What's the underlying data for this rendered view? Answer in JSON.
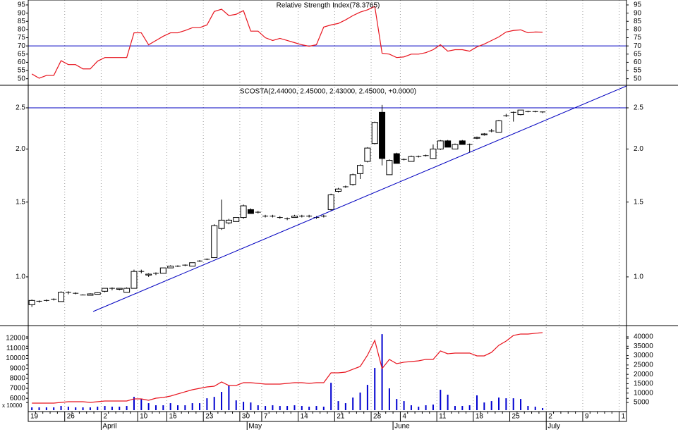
{
  "chart_data": [
    {
      "type": "line",
      "title": "Relative Strength Index(78.3765)",
      "color": "#e8141e",
      "ylim": [
        46,
        98
      ],
      "yticks": [
        50,
        55,
        60,
        65,
        70,
        75,
        80,
        85,
        90,
        95
      ],
      "grid": true,
      "reference_line": 70,
      "reference_color": "#0000c0",
      "values": [
        52.9,
        50.3,
        52,
        52,
        61,
        58.6,
        58.6,
        56,
        56,
        60.7,
        62.9,
        62.9,
        62.9,
        62.9,
        78,
        78,
        70.7,
        73.3,
        75.9,
        78,
        78,
        79.4,
        81.1,
        81.1,
        82.8,
        91,
        92.4,
        88.5,
        89.3,
        91.5,
        79,
        79,
        75,
        73.3,
        74.6,
        73.3,
        72,
        70.7,
        69.8,
        70.7,
        81.5,
        82.8,
        83.7,
        85.9,
        88.5,
        90.6,
        92,
        94.1,
        65.5,
        65,
        62.9,
        63.3,
        65,
        65,
        65.9,
        67.7,
        70.7,
        66.8,
        67.7,
        67.7,
        66.8,
        69.4,
        71.1,
        73.3,
        75.5,
        78.5,
        79.4,
        79.8,
        78,
        78.5,
        78.3765,
        null,
        null,
        null,
        null,
        null,
        null,
        null,
        null,
        null,
        null,
        null
      ]
    },
    {
      "type": "candlestick",
      "title": "SCOSTA(2.44000, 2.45000, 2.43000, 2.45000, +0.0000)",
      "color": "#000000",
      "log_scale": true,
      "ylim": [
        0.768,
        2.825
      ],
      "yticks": [
        {
          "value": 1,
          "label": "1.0"
        },
        1.5,
        {
          "value": 2,
          "label": "2.0"
        },
        2.5
      ],
      "grid": true,
      "reference_line": 2.5,
      "reference_color": "#0000c0",
      "open": [
        0.86,
        0.875,
        0.88,
        0.885,
        0.875,
        0.92,
        0.915,
        0.905,
        0.905,
        0.91,
        0.925,
        0.94,
        0.935,
        0.92,
        0.94,
        1.03,
        1.01,
        1.02,
        1.02,
        1.05,
        1.06,
        1.065,
        1.06,
        1.09,
        1.1,
        1.11,
        1.3,
        1.34,
        1.35,
        1.38,
        1.44,
        1.42,
        1.39,
        1.39,
        1.38,
        1.37,
        1.38,
        1.39,
        1.39,
        1.38,
        1.39,
        1.44,
        1.59,
        1.63,
        1.65,
        1.75,
        1.87,
        2.06,
        2.44,
        1.74,
        1.95,
        1.89,
        1.87,
        1.92,
        1.93,
        1.9,
        2,
        2.09,
        2,
        2.09,
        2.05,
        2.12,
        2.16,
        2.2,
        2.19,
        2.39,
        2.44,
        2.41,
        2.45,
        2.45,
        2.44,
        null,
        null,
        null,
        null,
        null,
        null,
        null,
        null,
        null,
        null,
        null
      ],
      "high": [
        0.885,
        0.88,
        0.885,
        0.89,
        0.925,
        0.925,
        0.92,
        0.91,
        0.915,
        0.92,
        0.94,
        0.945,
        0.94,
        0.945,
        1.04,
        1.04,
        1.02,
        1.025,
        1.05,
        1.065,
        1.065,
        1.07,
        1.08,
        1.095,
        1.105,
        1.33,
        1.52,
        1.37,
        1.38,
        1.48,
        1.45,
        1.43,
        1.4,
        1.4,
        1.39,
        1.38,
        1.4,
        1.4,
        1.4,
        1.39,
        1.4,
        1.57,
        1.62,
        1.64,
        1.75,
        1.84,
        2.02,
        2.32,
        2.54,
        1.89,
        1.96,
        1.9,
        1.93,
        1.93,
        1.94,
        2.05,
        2.1,
        2.1,
        2.06,
        2.1,
        2.06,
        2.14,
        2.18,
        2.23,
        2.34,
        2.42,
        2.45,
        2.47,
        2.46,
        2.46,
        2.45,
        null,
        null,
        null,
        null,
        null,
        null,
        null,
        null,
        null,
        null,
        null
      ],
      "low": [
        0.85,
        0.87,
        0.875,
        0.88,
        0.875,
        0.91,
        0.91,
        0.905,
        0.905,
        0.91,
        0.92,
        0.93,
        0.93,
        0.92,
        0.94,
        1.02,
        1,
        1.01,
        1.02,
        1.05,
        1.055,
        1.06,
        1.06,
        1.085,
        1.095,
        1.11,
        1.29,
        1.33,
        1.35,
        1.37,
        1.41,
        1.41,
        1.38,
        1.38,
        1.37,
        1.36,
        1.38,
        1.38,
        1.38,
        1.37,
        1.38,
        1.43,
        1.58,
        1.62,
        1.64,
        1.7,
        1.86,
        2.05,
        1.83,
        1.74,
        1.85,
        1.88,
        1.87,
        1.91,
        1.92,
        1.9,
        1.99,
        2.02,
        2,
        2.05,
        1.96,
        2.11,
        2.15,
        2.19,
        2.19,
        2.38,
        2.32,
        2.4,
        2.44,
        2.44,
        2.43,
        null,
        null,
        null,
        null,
        null,
        null,
        null,
        null,
        null,
        null,
        null
      ],
      "close": [
        0.88,
        0.878,
        0.88,
        0.888,
        0.92,
        0.92,
        0.915,
        0.908,
        0.912,
        0.918,
        0.94,
        0.94,
        0.94,
        0.94,
        1.03,
        1.03,
        1.015,
        1.02,
        1.05,
        1.06,
        1.06,
        1.067,
        1.08,
        1.09,
        1.1,
        1.32,
        1.36,
        1.36,
        1.38,
        1.47,
        1.41,
        1.42,
        1.39,
        1.39,
        1.38,
        1.37,
        1.39,
        1.39,
        1.39,
        1.38,
        1.39,
        1.56,
        1.61,
        1.63,
        1.74,
        1.83,
        2.01,
        2.31,
        1.9,
        1.88,
        1.85,
        1.89,
        1.92,
        1.92,
        1.93,
        2,
        2.09,
        2.02,
        2.05,
        2.05,
        2.05,
        2.13,
        2.17,
        2.21,
        2.33,
        2.4,
        2.44,
        2.47,
        2.45,
        2.45,
        2.45,
        null,
        null,
        null,
        null,
        null,
        null,
        null,
        null,
        null,
        null,
        null
      ]
    },
    {
      "type": "bar",
      "unit_label": "x 10000",
      "grid": true,
      "categories": [
        "19",
        null,
        null,
        null,
        null,
        "26",
        null,
        null,
        null,
        null,
        "2",
        null,
        null,
        null,
        null,
        "10",
        null,
        null,
        null,
        "16",
        null,
        null,
        null,
        null,
        "23",
        null,
        null,
        null,
        null,
        "30",
        null,
        null,
        "7",
        null,
        null,
        null,
        null,
        "14",
        null,
        null,
        null,
        null,
        "21",
        null,
        null,
        null,
        null,
        "28",
        null,
        null,
        null,
        "4",
        null,
        null,
        null,
        null,
        "11",
        null,
        null,
        null,
        null,
        "18",
        null,
        null,
        null,
        null,
        "25",
        null,
        null,
        null,
        null,
        "2",
        null,
        null,
        null,
        null,
        "9",
        null,
        null,
        null,
        null,
        "1"
      ],
      "months": [
        null,
        null,
        null,
        null,
        null,
        null,
        null,
        null,
        null,
        null,
        "April",
        null,
        null,
        null,
        null,
        null,
        null,
        null,
        null,
        null,
        null,
        null,
        null,
        null,
        null,
        null,
        null,
        null,
        null,
        null,
        "May",
        null,
        null,
        null,
        null,
        null,
        null,
        null,
        null,
        null,
        null,
        null,
        null,
        null,
        null,
        null,
        null,
        null,
        null,
        null,
        "June",
        null,
        null,
        null,
        null,
        null,
        null,
        null,
        null,
        null,
        null,
        null,
        null,
        null,
        null,
        null,
        null,
        null,
        null,
        null,
        null,
        "July",
        null,
        null,
        null,
        null,
        null,
        null,
        null,
        null,
        null,
        null
      ],
      "ylim": [
        4820,
        13270
      ],
      "yticks": [
        6000,
        7000,
        8000,
        9000,
        10000,
        11000,
        12000
      ],
      "y2lim": [
        900,
        46000
      ],
      "y2ticks": [
        5000,
        10000,
        15000,
        20000,
        25000,
        30000,
        35000,
        40000
      ],
      "series": [
        {
          "color": "#0000d0",
          "axis": "y",
          "values": [
            5100,
            5100,
            5100,
            5100,
            5240,
            5170,
            5100,
            5100,
            5100,
            5170,
            5240,
            5170,
            5170,
            5240,
            6150,
            5940,
            5520,
            5310,
            5310,
            5520,
            5310,
            5310,
            5520,
            5520,
            6010,
            6150,
            6650,
            7280,
            5800,
            5660,
            5590,
            5310,
            5240,
            5310,
            5240,
            5240,
            5310,
            5240,
            5170,
            5240,
            5170,
            7560,
            5730,
            5520,
            6080,
            6580,
            7350,
            9040,
            12420,
            7000,
            5940,
            5730,
            5310,
            5170,
            5310,
            5380,
            6860,
            6370,
            5240,
            5240,
            5310,
            6300,
            5590,
            5730,
            6080,
            6010,
            6010,
            5940,
            5240,
            5170,
            5030,
            null,
            null,
            null,
            null,
            null,
            null,
            null,
            null,
            null,
            null,
            null
          ]
        },
        {
          "color": "#e8141e",
          "axis": "y2",
          "values": [
            4660,
            4660,
            4660,
            4660,
            5040,
            5410,
            5410,
            5410,
            5040,
            5410,
            5790,
            5790,
            5790,
            5790,
            6920,
            6920,
            6170,
            7290,
            7670,
            8420,
            9550,
            10680,
            11800,
            12560,
            13310,
            13680,
            15940,
            14060,
            14060,
            15560,
            15560,
            15190,
            14810,
            14810,
            14810,
            15190,
            15560,
            15560,
            15190,
            15560,
            15560,
            20830,
            20830,
            21200,
            22710,
            24210,
            30230,
            38120,
            23080,
            27970,
            25710,
            26470,
            26840,
            27220,
            27970,
            27970,
            32480,
            30980,
            31350,
            31350,
            31350,
            29850,
            29850,
            31730,
            35490,
            37740,
            40750,
            41500,
            41500,
            41880,
            42260,
            null,
            null,
            null,
            null,
            null,
            null,
            null,
            null,
            null,
            null,
            null
          ]
        }
      ]
    }
  ]
}
